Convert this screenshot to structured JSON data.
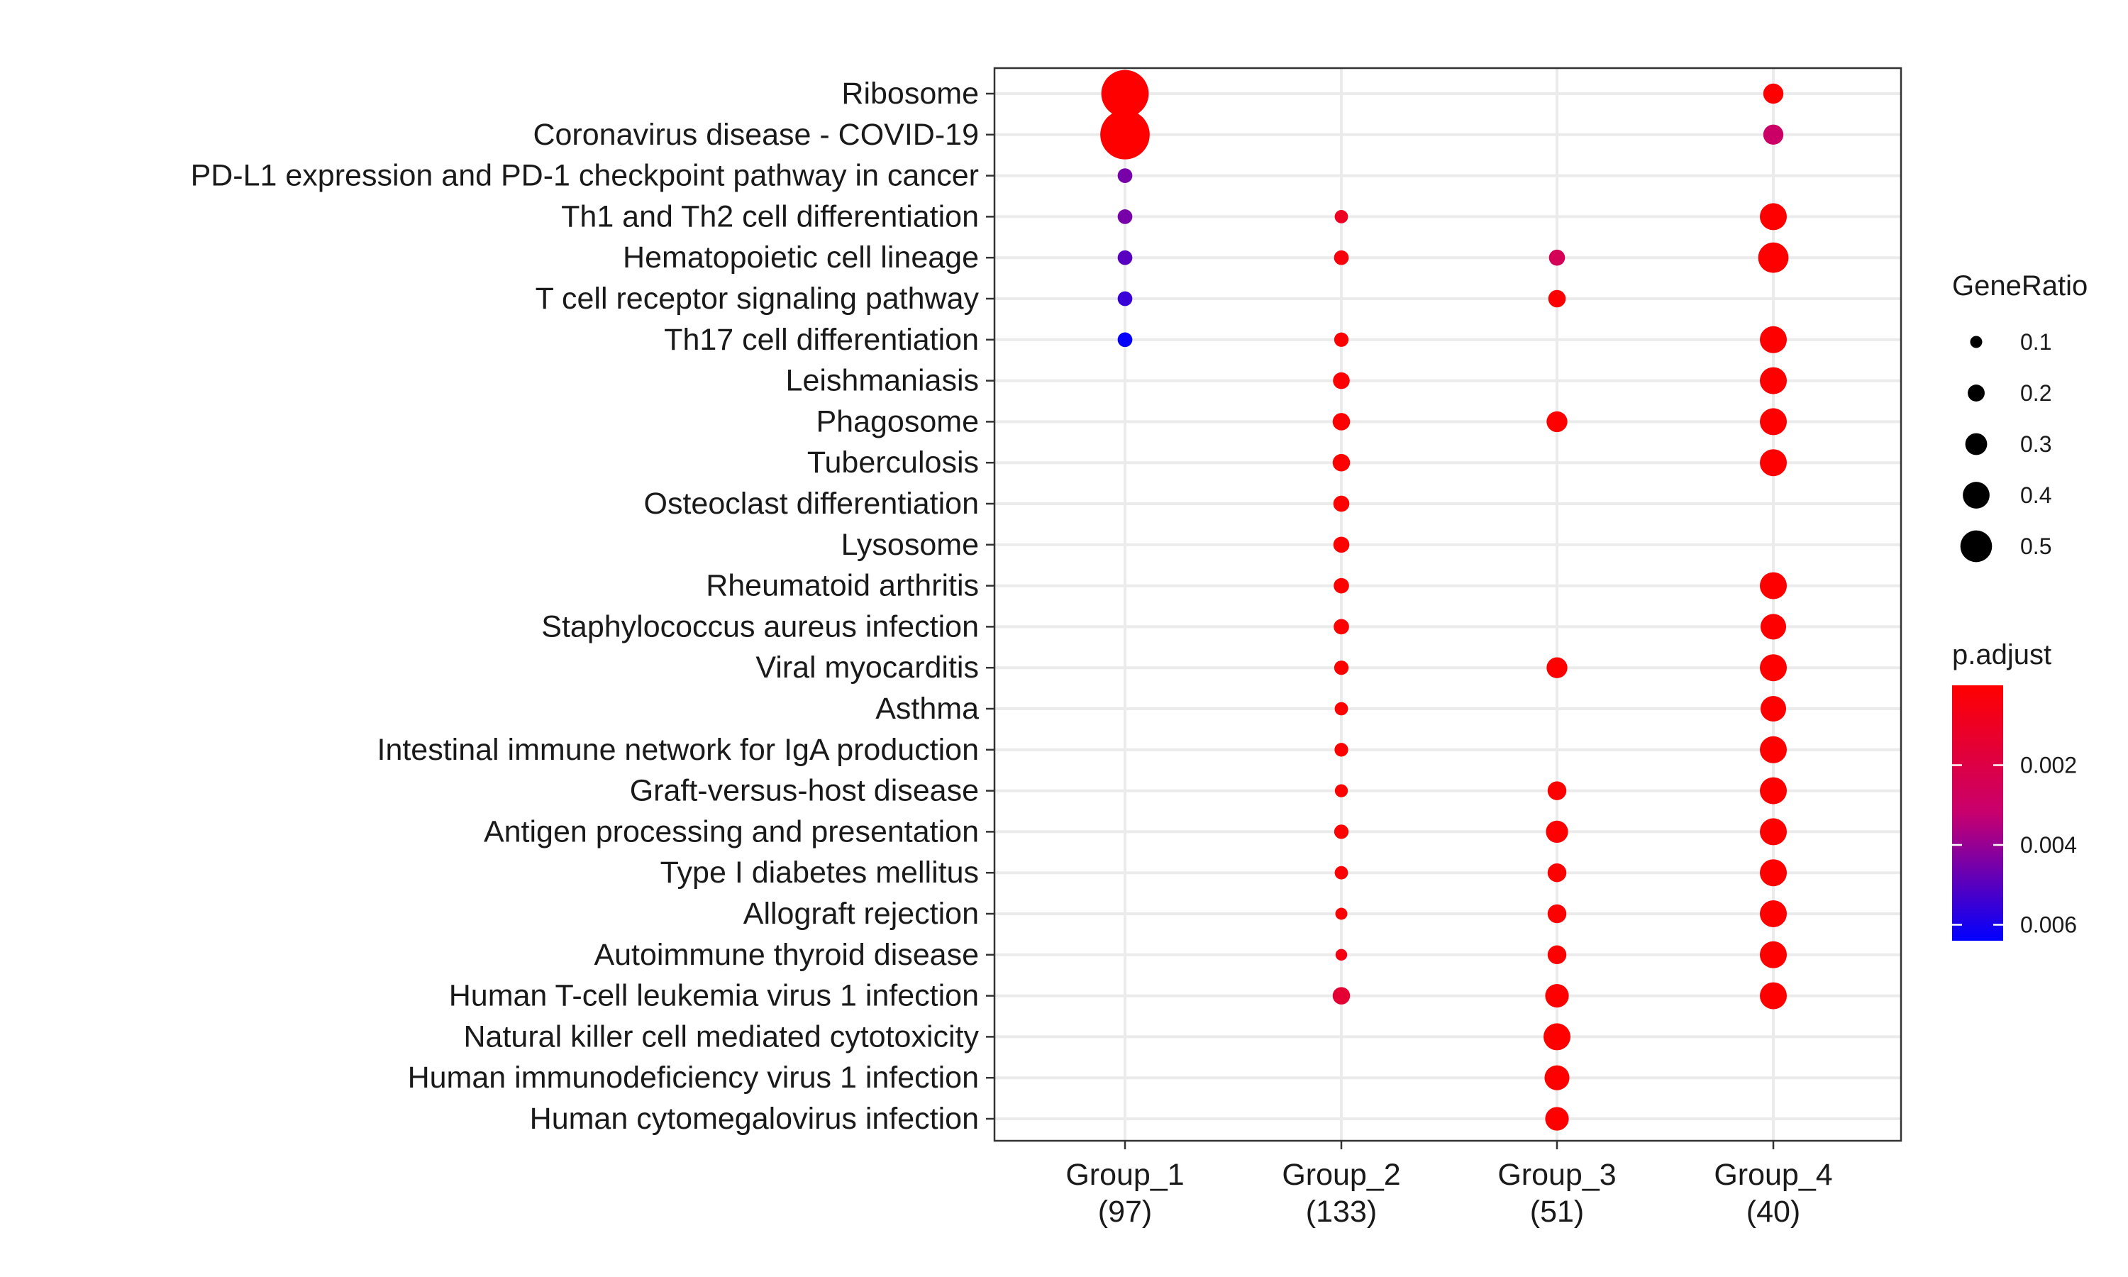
{
  "chart_data": {
    "type": "scatter",
    "title": "",
    "xlabel": "",
    "ylabel": "",
    "grid": true,
    "legend_placement": "right",
    "x_categories": [
      "Group_1\n(97)",
      "Group_2\n(133)",
      "Group_3\n(51)",
      "Group_4\n(40)"
    ],
    "y_categories": [
      "Ribosome",
      "Coronavirus disease - COVID-19",
      "PD-L1 expression and PD-1 checkpoint pathway in cancer",
      "Th1 and Th2 cell differentiation",
      "Hematopoietic cell lineage",
      "T cell receptor signaling pathway",
      "Th17 cell differentiation",
      "Leishmaniasis",
      "Phagosome",
      "Tuberculosis",
      "Osteoclast differentiation",
      "Lysosome",
      "Rheumatoid arthritis",
      "Staphylococcus aureus infection",
      "Viral myocarditis",
      "Asthma",
      "Intestinal immune network for IgA production",
      "Graft-versus-host disease",
      "Antigen processing and presentation",
      "Type I diabetes mellitus",
      "Allograft rejection",
      "Autoimmune thyroid disease",
      "Human T-cell leukemia virus 1 infection",
      "Natural killer cell mediated cytotoxicity",
      "Human immunodeficiency virus 1 infection",
      "Human cytomegalovirus infection"
    ],
    "points": [
      {
        "x": "Group_1\n(97)",
        "y": "Ribosome",
        "gene_ratio": 0.55,
        "p_adjust": 0.0
      },
      {
        "x": "Group_1\n(97)",
        "y": "Coronavirus disease - COVID-19",
        "gene_ratio": 0.58,
        "p_adjust": 0.0
      },
      {
        "x": "Group_1\n(97)",
        "y": "PD-L1 expression and PD-1 checkpoint pathway in cancer",
        "gene_ratio": 0.07,
        "p_adjust": 0.0045
      },
      {
        "x": "Group_1\n(97)",
        "y": "Th1 and Th2 cell differentiation",
        "gene_ratio": 0.07,
        "p_adjust": 0.0045
      },
      {
        "x": "Group_1\n(97)",
        "y": "Hematopoietic cell lineage",
        "gene_ratio": 0.07,
        "p_adjust": 0.005
      },
      {
        "x": "Group_1\n(97)",
        "y": "T cell receptor signaling pathway",
        "gene_ratio": 0.07,
        "p_adjust": 0.0055
      },
      {
        "x": "Group_1\n(97)",
        "y": "Th17 cell differentiation",
        "gene_ratio": 0.07,
        "p_adjust": 0.0063
      },
      {
        "x": "Group_2\n(133)",
        "y": "Th1 and Th2 cell differentiation",
        "gene_ratio": 0.05,
        "p_adjust": 0.001
      },
      {
        "x": "Group_2\n(133)",
        "y": "Hematopoietic cell lineage",
        "gene_ratio": 0.07,
        "p_adjust": 0.0003
      },
      {
        "x": "Group_2\n(133)",
        "y": "Th17 cell differentiation",
        "gene_ratio": 0.065,
        "p_adjust": 0.0
      },
      {
        "x": "Group_2\n(133)",
        "y": "Leishmaniasis",
        "gene_ratio": 0.1,
        "p_adjust": 0.0
      },
      {
        "x": "Group_2\n(133)",
        "y": "Phagosome",
        "gene_ratio": 0.11,
        "p_adjust": 0.0
      },
      {
        "x": "Group_2\n(133)",
        "y": "Tuberculosis",
        "gene_ratio": 0.11,
        "p_adjust": 0.0
      },
      {
        "x": "Group_2\n(133)",
        "y": "Osteoclast differentiation",
        "gene_ratio": 0.09,
        "p_adjust": 0.0
      },
      {
        "x": "Group_2\n(133)",
        "y": "Lysosome",
        "gene_ratio": 0.09,
        "p_adjust": 0.0
      },
      {
        "x": "Group_2\n(133)",
        "y": "Rheumatoid arthritis",
        "gene_ratio": 0.08,
        "p_adjust": 0.0
      },
      {
        "x": "Group_2\n(133)",
        "y": "Staphylococcus aureus infection",
        "gene_ratio": 0.08,
        "p_adjust": 0.0
      },
      {
        "x": "Group_2\n(133)",
        "y": "Viral myocarditis",
        "gene_ratio": 0.065,
        "p_adjust": 0.0
      },
      {
        "x": "Group_2\n(133)",
        "y": "Asthma",
        "gene_ratio": 0.05,
        "p_adjust": 0.0
      },
      {
        "x": "Group_2\n(133)",
        "y": "Intestinal immune network for IgA production",
        "gene_ratio": 0.055,
        "p_adjust": 0.0
      },
      {
        "x": "Group_2\n(133)",
        "y": "Graft-versus-host disease",
        "gene_ratio": 0.045,
        "p_adjust": 0.0
      },
      {
        "x": "Group_2\n(133)",
        "y": "Antigen processing and presentation",
        "gene_ratio": 0.065,
        "p_adjust": 0.0
      },
      {
        "x": "Group_2\n(133)",
        "y": "Type I diabetes mellitus",
        "gene_ratio": 0.05,
        "p_adjust": 0.0
      },
      {
        "x": "Group_2\n(133)",
        "y": "Allograft rejection",
        "gene_ratio": 0.03,
        "p_adjust": 0.0
      },
      {
        "x": "Group_2\n(133)",
        "y": "Autoimmune thyroid disease",
        "gene_ratio": 0.025,
        "p_adjust": 0.0005
      },
      {
        "x": "Group_2\n(133)",
        "y": "Human T-cell leukemia virus 1 infection",
        "gene_ratio": 0.11,
        "p_adjust": 0.0015
      },
      {
        "x": "Group_3\n(51)",
        "y": "Hematopoietic cell lineage",
        "gene_ratio": 0.09,
        "p_adjust": 0.0025
      },
      {
        "x": "Group_3\n(51)",
        "y": "T cell receptor signaling pathway",
        "gene_ratio": 0.11,
        "p_adjust": 0.0
      },
      {
        "x": "Group_3\n(51)",
        "y": "Phagosome",
        "gene_ratio": 0.16,
        "p_adjust": 0.0
      },
      {
        "x": "Group_3\n(51)",
        "y": "Viral myocarditis",
        "gene_ratio": 0.16,
        "p_adjust": 0.0
      },
      {
        "x": "Group_3\n(51)",
        "y": "Graft-versus-host disease",
        "gene_ratio": 0.13,
        "p_adjust": 0.0
      },
      {
        "x": "Group_3\n(51)",
        "y": "Antigen processing and presentation",
        "gene_ratio": 0.18,
        "p_adjust": 0.0
      },
      {
        "x": "Group_3\n(51)",
        "y": "Type I diabetes mellitus",
        "gene_ratio": 0.13,
        "p_adjust": 0.0
      },
      {
        "x": "Group_3\n(51)",
        "y": "Allograft rejection",
        "gene_ratio": 0.13,
        "p_adjust": 0.0
      },
      {
        "x": "Group_3\n(51)",
        "y": "Autoimmune thyroid disease",
        "gene_ratio": 0.13,
        "p_adjust": 0.0
      },
      {
        "x": "Group_3\n(51)",
        "y": "Human T-cell leukemia virus 1 infection",
        "gene_ratio": 0.2,
        "p_adjust": 0.0
      },
      {
        "x": "Group_3\n(51)",
        "y": "Natural killer cell mediated cytotoxicity",
        "gene_ratio": 0.25,
        "p_adjust": 0.0
      },
      {
        "x": "Group_3\n(51)",
        "y": "Human immunodeficiency virus 1 infection",
        "gene_ratio": 0.22,
        "p_adjust": 0.0
      },
      {
        "x": "Group_3\n(51)",
        "y": "Human cytomegalovirus infection",
        "gene_ratio": 0.2,
        "p_adjust": 0.0
      },
      {
        "x": "Group_4\n(40)",
        "y": "Ribosome",
        "gene_ratio": 0.15,
        "p_adjust": 0.0
      },
      {
        "x": "Group_4\n(40)",
        "y": "Coronavirus disease - COVID-19",
        "gene_ratio": 0.15,
        "p_adjust": 0.003
      },
      {
        "x": "Group_4\n(40)",
        "y": "Th1 and Th2 cell differentiation",
        "gene_ratio": 0.25,
        "p_adjust": 0.0
      },
      {
        "x": "Group_4\n(40)",
        "y": "Hematopoietic cell lineage",
        "gene_ratio": 0.3,
        "p_adjust": 0.0
      },
      {
        "x": "Group_4\n(40)",
        "y": "Th17 cell differentiation",
        "gene_ratio": 0.25,
        "p_adjust": 0.0
      },
      {
        "x": "Group_4\n(40)",
        "y": "Leishmaniasis",
        "gene_ratio": 0.25,
        "p_adjust": 0.0
      },
      {
        "x": "Group_4\n(40)",
        "y": "Phagosome",
        "gene_ratio": 0.25,
        "p_adjust": 0.0
      },
      {
        "x": "Group_4\n(40)",
        "y": "Tuberculosis",
        "gene_ratio": 0.25,
        "p_adjust": 0.0
      },
      {
        "x": "Group_4\n(40)",
        "y": "Rheumatoid arthritis",
        "gene_ratio": 0.25,
        "p_adjust": 0.0
      },
      {
        "x": "Group_4\n(40)",
        "y": "Staphylococcus aureus infection",
        "gene_ratio": 0.23,
        "p_adjust": 0.0
      },
      {
        "x": "Group_4\n(40)",
        "y": "Viral myocarditis",
        "gene_ratio": 0.25,
        "p_adjust": 0.0
      },
      {
        "x": "Group_4\n(40)",
        "y": "Asthma",
        "gene_ratio": 0.23,
        "p_adjust": 0.0
      },
      {
        "x": "Group_4\n(40)",
        "y": "Intestinal immune network for IgA production",
        "gene_ratio": 0.25,
        "p_adjust": 0.0
      },
      {
        "x": "Group_4\n(40)",
        "y": "Graft-versus-host disease",
        "gene_ratio": 0.25,
        "p_adjust": 0.0
      },
      {
        "x": "Group_4\n(40)",
        "y": "Antigen processing and presentation",
        "gene_ratio": 0.25,
        "p_adjust": 0.0
      },
      {
        "x": "Group_4\n(40)",
        "y": "Type I diabetes mellitus",
        "gene_ratio": 0.25,
        "p_adjust": 0.0
      },
      {
        "x": "Group_4\n(40)",
        "y": "Allograft rejection",
        "gene_ratio": 0.25,
        "p_adjust": 0.0
      },
      {
        "x": "Group_4\n(40)",
        "y": "Autoimmune thyroid disease",
        "gene_ratio": 0.25,
        "p_adjust": 0.0
      },
      {
        "x": "Group_4\n(40)",
        "y": "Human T-cell leukemia virus 1 infection",
        "gene_ratio": 0.25,
        "p_adjust": 0.0
      }
    ],
    "size_legend": {
      "title": "GeneRatio",
      "breaks": [
        0.1,
        0.2,
        0.3,
        0.4,
        0.5
      ],
      "labels": [
        "0.1",
        "0.2",
        "0.3",
        "0.4",
        "0.5"
      ]
    },
    "color_legend": {
      "title": "p.adjust",
      "range": [
        0.0,
        0.0064
      ],
      "breaks": [
        0.002,
        0.004,
        0.006
      ],
      "labels": [
        "0.002",
        "0.004",
        "0.006"
      ],
      "low_value_color": "#FF0000",
      "high_value_color": "#0000FF"
    }
  }
}
